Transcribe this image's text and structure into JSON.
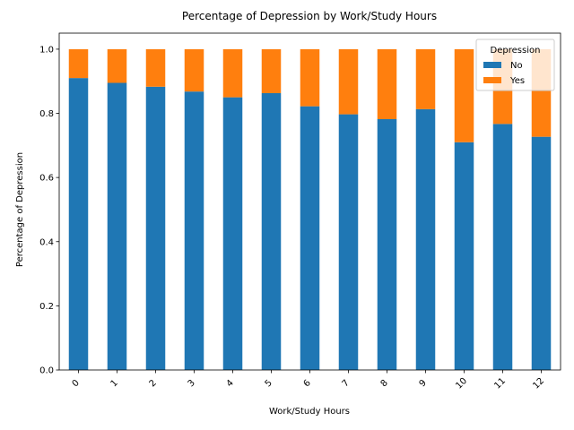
{
  "chart_data": {
    "type": "bar",
    "stacked": true,
    "title": "Percentage of Depression by Work/Study Hours",
    "xlabel": "Work/Study Hours",
    "ylabel": "Percentage of Depression",
    "categories": [
      "0",
      "1",
      "2",
      "3",
      "4",
      "5",
      "6",
      "7",
      "8",
      "9",
      "10",
      "11",
      "12"
    ],
    "ylim": [
      0,
      1.05
    ],
    "yticks": [
      "0.0",
      "0.2",
      "0.4",
      "0.6",
      "0.8",
      "1.0"
    ],
    "ytick_values": [
      0,
      0.2,
      0.4,
      0.6,
      0.8,
      1.0
    ],
    "legend": {
      "title": "Depression",
      "position": "top-right"
    },
    "series": [
      {
        "name": "No",
        "color": "#1f77b4",
        "values": [
          0.91,
          0.895,
          0.883,
          0.868,
          0.85,
          0.863,
          0.822,
          0.797,
          0.782,
          0.813,
          0.71,
          0.767,
          0.727
        ]
      },
      {
        "name": "Yes",
        "color": "#ff7f0e",
        "values": [
          0.09,
          0.105,
          0.117,
          0.132,
          0.15,
          0.137,
          0.178,
          0.203,
          0.218,
          0.187,
          0.29,
          0.233,
          0.273
        ]
      }
    ],
    "grid": false
  }
}
